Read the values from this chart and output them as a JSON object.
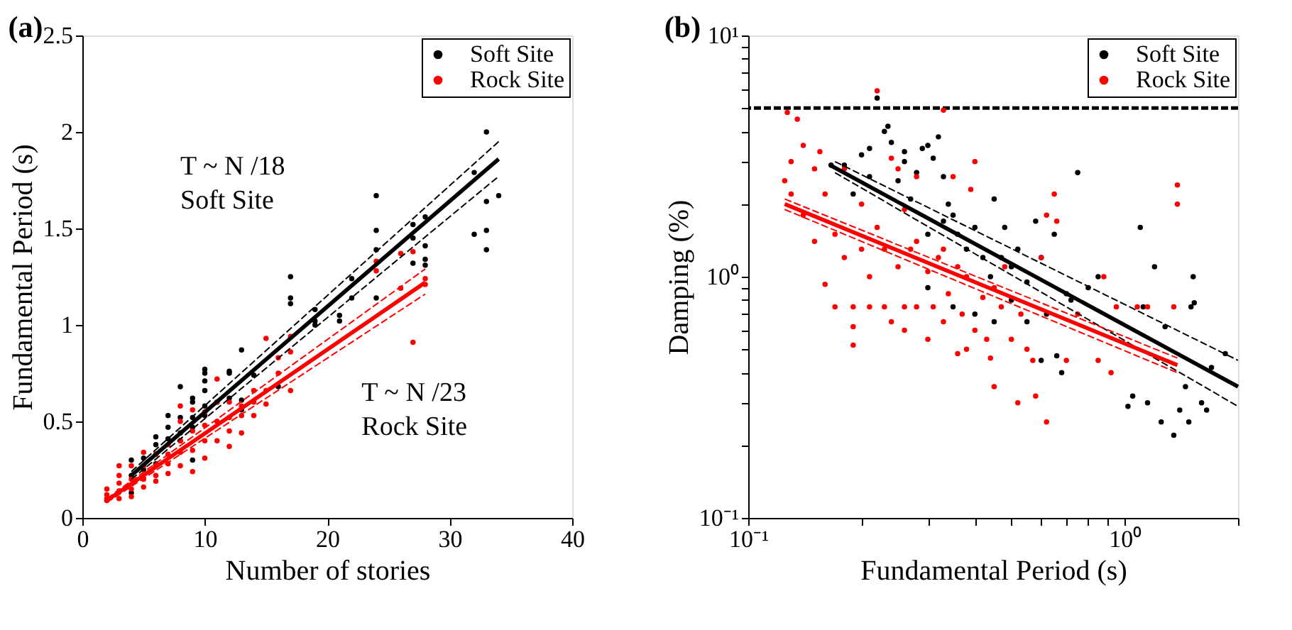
{
  "chart_data": [
    {
      "type": "scatter",
      "title": "(a)",
      "xlabel": "Number of stories",
      "ylabel": "Fundamental Period (s)",
      "xlim": [
        0,
        40
      ],
      "ylim": [
        0,
        2.5
      ],
      "xticks": [
        0,
        10,
        20,
        30,
        40
      ],
      "yticks": [
        0,
        0.5,
        1,
        1.5,
        2,
        2.5
      ],
      "grid": false,
      "legend": "top right",
      "series": [
        {
          "name": "Soft Site",
          "color": "#000000",
          "marker": "circle",
          "x": [
            4,
            4,
            4,
            5,
            5,
            6,
            6,
            6,
            6,
            7,
            7,
            7,
            8,
            8,
            8,
            8,
            9,
            9,
            9,
            9,
            9,
            10,
            10,
            10,
            10,
            10,
            10,
            11,
            12,
            12,
            12,
            13,
            13,
            13,
            14,
            16,
            17,
            17,
            17,
            19,
            19,
            19,
            21,
            21,
            22,
            22,
            24,
            24,
            24,
            24,
            27,
            27,
            27,
            28,
            28,
            28,
            28,
            32,
            32,
            33,
            33,
            33,
            33,
            34
          ],
          "values": [
            0.3,
            0.13,
            0.22,
            0.31,
            0.25,
            0.42,
            0.38,
            0.33,
            0.28,
            0.53,
            0.47,
            0.41,
            0.68,
            0.52,
            0.44,
            0.4,
            0.62,
            0.6,
            0.52,
            0.47,
            0.3,
            0.77,
            0.75,
            0.71,
            0.66,
            0.58,
            0.53,
            0.6,
            0.76,
            0.75,
            0.62,
            0.87,
            0.61,
            0.56,
            0.74,
            0.68,
            1.25,
            1.14,
            1.11,
            1.08,
            1.02,
            1.0,
            1.05,
            1.02,
            1.24,
            1.14,
            1.67,
            1.49,
            1.39,
            1.14,
            1.52,
            1.45,
            1.32,
            1.56,
            1.41,
            1.34,
            1.31,
            1.47,
            1.79,
            2.0,
            1.64,
            1.49,
            1.39,
            1.67
          ]
        },
        {
          "name": "Rock Site",
          "color": "#ff0000",
          "marker": "circle",
          "x": [
            2,
            2,
            2,
            2,
            3,
            3,
            3,
            3,
            3,
            4,
            4,
            4,
            4,
            5,
            5,
            5,
            5,
            6,
            6,
            6,
            6,
            7,
            7,
            7,
            7,
            8,
            8,
            8,
            8,
            8,
            9,
            9,
            9,
            9,
            10,
            10,
            10,
            10,
            11,
            11,
            11,
            11,
            12,
            12,
            12,
            12,
            13,
            13,
            13,
            14,
            14,
            14,
            15,
            15,
            15,
            16,
            16,
            17,
            17,
            17,
            24,
            24,
            26,
            26,
            27,
            27,
            28,
            28
          ],
          "values": [
            0.15,
            0.12,
            0.1,
            0.09,
            0.27,
            0.22,
            0.18,
            0.14,
            0.1,
            0.27,
            0.2,
            0.15,
            0.11,
            0.34,
            0.27,
            0.2,
            0.16,
            0.33,
            0.27,
            0.22,
            0.19,
            0.38,
            0.33,
            0.28,
            0.23,
            0.58,
            0.5,
            0.4,
            0.34,
            0.27,
            0.56,
            0.45,
            0.35,
            0.24,
            0.55,
            0.48,
            0.4,
            0.31,
            0.72,
            0.6,
            0.5,
            0.4,
            0.6,
            0.52,
            0.45,
            0.37,
            0.58,
            0.53,
            0.44,
            0.66,
            0.6,
            0.53,
            0.93,
            0.66,
            0.59,
            0.83,
            0.75,
            0.94,
            0.86,
            0.66,
            1.33,
            1.28,
            1.37,
            1.19,
            1.38,
            0.91,
            1.24,
            1.21
          ]
        },
        {
          "type": "line",
          "color": "#000000",
          "line_style": "solid",
          "x": [
            4,
            34
          ],
          "values": [
            0.22,
            1.86
          ]
        },
        {
          "type": "line",
          "color": "#000000",
          "line_style": "dashed",
          "x": [
            4,
            34
          ],
          "values": [
            0.24,
            1.95
          ]
        },
        {
          "type": "line",
          "color": "#000000",
          "line_style": "dashed",
          "x": [
            4,
            34
          ],
          "values": [
            0.2,
            1.77
          ]
        },
        {
          "type": "line",
          "color": "#ff0000",
          "line_style": "solid",
          "x": [
            2,
            28
          ],
          "values": [
            0.09,
            1.22
          ]
        },
        {
          "type": "line",
          "color": "#ff0000",
          "line_style": "dashed",
          "x": [
            2,
            28
          ],
          "values": [
            0.1,
            1.29
          ]
        },
        {
          "type": "line",
          "color": "#ff0000",
          "line_style": "dashed",
          "x": [
            2,
            28
          ],
          "values": [
            0.08,
            1.16
          ]
        }
      ],
      "annotations": [
        "T ~ N /18\nSoft Site",
        "T ~ N /23\nRock Site"
      ]
    },
    {
      "type": "scatter",
      "title": "(b)",
      "xlabel": "Fundamental Period (s)",
      "ylabel": "Damping (%)",
      "log": "xy",
      "xlim": [
        0.1,
        2
      ],
      "ylim": [
        0.1,
        10
      ],
      "xticks": [
        {
          "value": 0.1,
          "label": "10⁻¹"
        },
        {
          "value": 0.2,
          "label": null
        },
        {
          "value": 0.3,
          "label": null
        },
        {
          "value": 0.4,
          "label": null
        },
        {
          "value": 0.5,
          "label": null
        },
        {
          "value": 0.6,
          "label": null
        },
        {
          "value": 0.7,
          "label": null
        },
        {
          "value": 0.8,
          "label": null
        },
        {
          "value": 0.9,
          "label": null
        },
        {
          "value": 1,
          "label": "10⁰"
        },
        {
          "value": 2,
          "label": null
        }
      ],
      "yticks": [
        {
          "value": 0.1,
          "label": "10⁻¹"
        },
        {
          "value": 0.2,
          "label": null
        },
        {
          "value": 0.3,
          "label": null
        },
        {
          "value": 0.4,
          "label": null
        },
        {
          "value": 0.5,
          "label": null
        },
        {
          "value": 0.6,
          "label": null
        },
        {
          "value": 0.7,
          "label": null
        },
        {
          "value": 0.8,
          "label": null
        },
        {
          "value": 0.9,
          "label": null
        },
        {
          "value": 1,
          "label": "10⁰"
        },
        {
          "value": 2,
          "label": null
        },
        {
          "value": 3,
          "label": null
        },
        {
          "value": 4,
          "label": null
        },
        {
          "value": 5,
          "label": null
        },
        {
          "value": 6,
          "label": null
        },
        {
          "value": 7,
          "label": null
        },
        {
          "value": 8,
          "label": null
        },
        {
          "value": 9,
          "label": null
        },
        {
          "value": 10,
          "label": "10¹"
        }
      ],
      "grid": false,
      "legend": "top right",
      "ref_lines": [
        {
          "axis": "y",
          "value": 5,
          "color": "#000000",
          "line_style": "dashed"
        }
      ],
      "series": [
        {
          "name": "Soft Site",
          "color": "#000000",
          "marker": "circle",
          "x": [
            0.166,
            0.18,
            0.19,
            0.2,
            0.21,
            0.21,
            0.23,
            0.235,
            0.24,
            0.22,
            0.25,
            0.26,
            0.26,
            0.27,
            0.28,
            0.29,
            0.3,
            0.31,
            0.32,
            0.33,
            0.34,
            0.3,
            0.33,
            0.35,
            0.36,
            0.38,
            0.4,
            0.42,
            0.44,
            0.45,
            0.47,
            0.48,
            0.5,
            0.52,
            0.55,
            0.58,
            0.6,
            0.62,
            0.65,
            0.66,
            0.68,
            0.7,
            0.72,
            0.75,
            0.8,
            0.85,
            0.3,
            0.35,
            0.4,
            0.45,
            0.5,
            0.55,
            0.6,
            1.02,
            1.05,
            1.1,
            1.12,
            1.15,
            1.2,
            1.25,
            1.28,
            1.35,
            1.4,
            1.45,
            1.48,
            1.5,
            1.52,
            1.53,
            1.6,
            1.65,
            1.7,
            1.85
          ],
          "values": [
            2.9,
            2.9,
            2.2,
            3.2,
            2.6,
            3.4,
            4.0,
            4.2,
            3.6,
            5.5,
            2.5,
            3.3,
            3.0,
            2.1,
            2.7,
            3.4,
            3.5,
            3.1,
            3.8,
            2.6,
            2.0,
            1.5,
            1.7,
            1.8,
            1.5,
            1.3,
            1.6,
            1.2,
            1.0,
            2.1,
            1.2,
            1.6,
            1.1,
            1.3,
            0.95,
            1.7,
            1.2,
            0.7,
            1.5,
            0.47,
            0.4,
            0.85,
            0.8,
            2.7,
            0.9,
            1.0,
            0.9,
            0.75,
            0.7,
            0.65,
            0.8,
            0.65,
            0.45,
            0.29,
            0.32,
            1.6,
            0.75,
            0.3,
            1.1,
            0.25,
            0.62,
            0.22,
            0.28,
            0.35,
            0.25,
            0.75,
            1.0,
            0.78,
            0.3,
            0.28,
            0.42,
            0.48
          ]
        },
        {
          "name": "Rock Site",
          "color": "#ff0000",
          "marker": "circle",
          "x": [
            0.125,
            0.127,
            0.13,
            0.13,
            0.135,
            0.14,
            0.14,
            0.15,
            0.15,
            0.155,
            0.16,
            0.16,
            0.17,
            0.17,
            0.18,
            0.18,
            0.19,
            0.19,
            0.19,
            0.2,
            0.2,
            0.21,
            0.21,
            0.22,
            0.22,
            0.23,
            0.23,
            0.24,
            0.24,
            0.25,
            0.25,
            0.26,
            0.26,
            0.27,
            0.28,
            0.28,
            0.3,
            0.3,
            0.31,
            0.32,
            0.33,
            0.33,
            0.34,
            0.35,
            0.36,
            0.37,
            0.38,
            0.38,
            0.39,
            0.4,
            0.4,
            0.42,
            0.43,
            0.44,
            0.45,
            0.47,
            0.48,
            0.5,
            0.52,
            0.53,
            0.55,
            0.57,
            0.58,
            0.6,
            0.62,
            0.62,
            0.65,
            0.66,
            0.7,
            0.75,
            0.85,
            0.88,
            0.92,
            0.95,
            1.08,
            1.15,
            1.38,
            1.38,
            1.35,
            0.26,
            0.28,
            0.33,
            0.36,
            0.45
          ],
          "values": [
            2.5,
            4.8,
            3.0,
            2.2,
            4.5,
            3.5,
            1.8,
            1.4,
            2.8,
            3.3,
            2.2,
            0.93,
            0.75,
            1.5,
            1.2,
            2.8,
            0.75,
            0.52,
            0.62,
            2.0,
            1.3,
            0.75,
            1.0,
            5.9,
            1.6,
            0.75,
            1.3,
            3.1,
            0.65,
            1.1,
            2.8,
            0.75,
            0.6,
            1.3,
            2.6,
            0.75,
            1.05,
            0.55,
            0.75,
            1.2,
            4.9,
            0.65,
            0.85,
            2.6,
            0.48,
            0.7,
            1.0,
            0.5,
            2.3,
            3.0,
            0.6,
            0.82,
            0.55,
            0.46,
            0.35,
            0.75,
            1.1,
            0.55,
            0.3,
            0.7,
            0.5,
            0.45,
            0.32,
            1.2,
            1.8,
            0.25,
            2.2,
            1.7,
            0.45,
            0.7,
            0.45,
            1.0,
            0.4,
            0.75,
            0.75,
            0.75,
            2.4,
            2.0,
            0.75,
            1.9,
            1.4,
            1.3,
            1.1,
            0.9
          ]
        },
        {
          "type": "line",
          "color": "#000000",
          "line_style": "solid",
          "x": [
            0.165,
            2.0
          ],
          "values": [
            2.9,
            0.35
          ]
        },
        {
          "type": "line",
          "color": "#000000",
          "line_style": "dashed",
          "x": [
            0.17,
            2.0
          ],
          "values": [
            3.0,
            0.45
          ]
        },
        {
          "type": "line",
          "color": "#000000",
          "line_style": "dashed",
          "x": [
            0.17,
            2.0
          ],
          "values": [
            2.7,
            0.29
          ]
        },
        {
          "type": "line",
          "color": "#ff0000",
          "line_style": "solid",
          "x": [
            0.125,
            1.38
          ],
          "values": [
            2.0,
            0.43
          ]
        },
        {
          "type": "line",
          "color": "#ff0000",
          "line_style": "dashed",
          "x": [
            0.125,
            1.38
          ],
          "values": [
            2.1,
            0.46
          ]
        },
        {
          "type": "line",
          "color": "#ff0000",
          "line_style": "dashed",
          "x": [
            0.125,
            1.38
          ],
          "values": [
            1.9,
            0.4
          ]
        }
      ]
    }
  ]
}
